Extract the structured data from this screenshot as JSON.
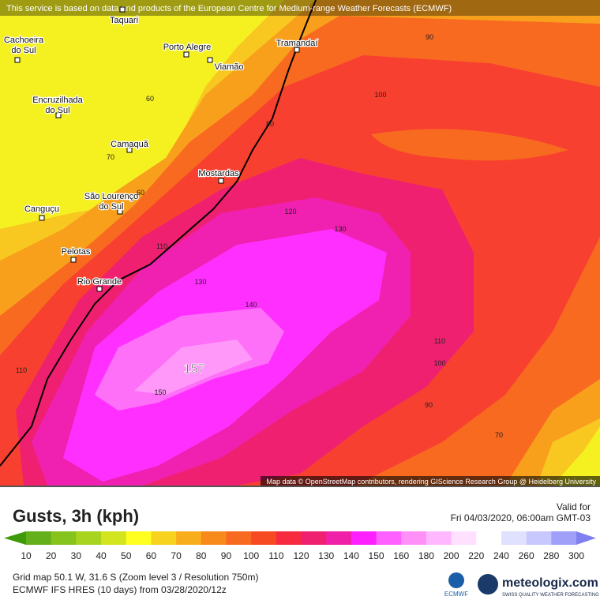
{
  "header": {
    "notice": "This service is based on data and products of the European Centre for Medium-range Weather Forecasts (ECMWF)"
  },
  "map": {
    "cities": [
      {
        "lines": [
          "Taquari"
        ]
      },
      {
        "lines": [
          "Cachoeira",
          "do Sul"
        ]
      },
      {
        "lines": [
          "Porto Alegre"
        ]
      },
      {
        "lines": [
          "Viamão"
        ]
      },
      {
        "lines": [
          "Tramandaí"
        ]
      },
      {
        "lines": [
          "Encruzilhada",
          "do Sul"
        ]
      },
      {
        "lines": [
          "Camaquã"
        ]
      },
      {
        "lines": [
          "Mostardas"
        ]
      },
      {
        "lines": [
          "São Lourenço",
          "do Sul"
        ]
      },
      {
        "lines": [
          "Canguçu"
        ]
      },
      {
        "lines": [
          "Pelotas"
        ]
      },
      {
        "lines": [
          "Rio Grande"
        ]
      }
    ],
    "contour_labels": [
      "60",
      "70",
      "60",
      "80",
      "90",
      "100",
      "120",
      "130",
      "110",
      "130",
      "140",
      "150",
      "110",
      "100",
      "90",
      "70",
      "110"
    ],
    "max_label": "157",
    "attribution": "Map data © OpenStreetMap contributors, rendering GIScience Research Group @ Heidelberg University"
  },
  "panel": {
    "title": "Gusts, 3h (kph)",
    "valid_label": "Valid for",
    "valid_time": "Fri 04/03/2020, 06:00am GMT-03",
    "legend": {
      "ticks": [
        "10",
        "20",
        "30",
        "40",
        "50",
        "60",
        "70",
        "80",
        "90",
        "100",
        "110",
        "120",
        "130",
        "140",
        "150",
        "160",
        "180",
        "200",
        "220",
        "240",
        "260",
        "280",
        "300"
      ],
      "colors": [
        "#3f9a0a",
        "#64b01a",
        "#86c31c",
        "#a8d31e",
        "#d2e51f",
        "#ffff20",
        "#f7d21e",
        "#f8ad1c",
        "#f88a1c",
        "#f86a20",
        "#f84a22",
        "#f82a40",
        "#f02070",
        "#f020a8",
        "#ff20ff",
        "#ff60ff",
        "#ff90f8",
        "#ffb8ff",
        "#ffe0ff",
        "#ffffff",
        "#e0e0ff",
        "#c8c8ff",
        "#a0a0f8",
        "#8080f0"
      ]
    },
    "grid_info": "Grid map 50.1 W, 31.6 S (Zoom level 3 / Resolution 750m)",
    "model_info": "ECMWF IFS HRES (10 days) from 03/28/2020/12z",
    "ecmwf_logo": "ECMWF",
    "brand": "meteologix.com",
    "brand_tagline": "SWISS QUALITY WEATHER FORECASTING"
  }
}
